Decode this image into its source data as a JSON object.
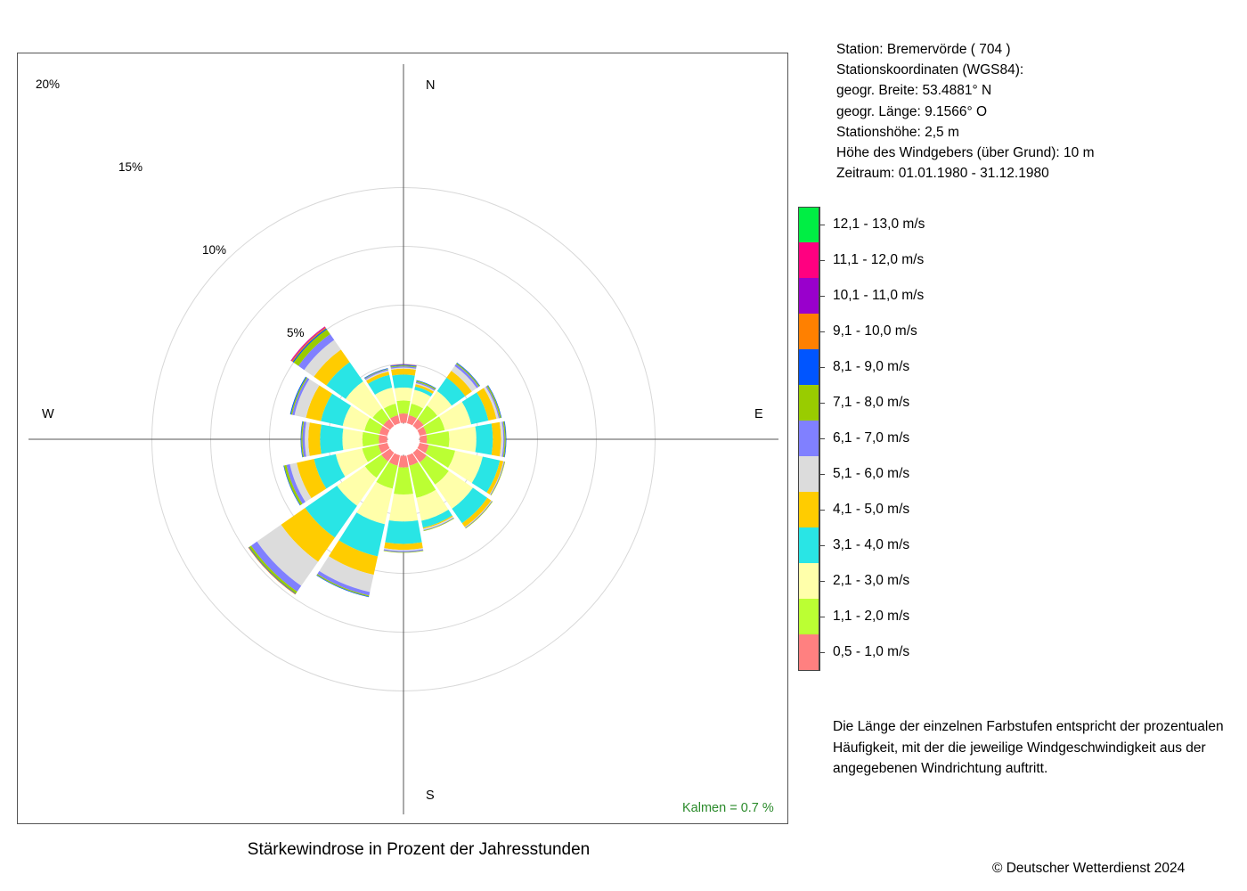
{
  "station": {
    "line1": "Station:  Bremervörde  ( 704 )",
    "line2": "Stationskoordinaten (WGS84):",
    "line3": "geogr. Breite: 53.4881° N",
    "line4": "geogr. Länge:   9.1566° O",
    "line5": "Stationshöhe: 2,5 m",
    "line6": "Höhe des Windgebers (über Grund): 10 m",
    "line7": "Zeitraum: 01.01.1980 - 31.12.1980"
  },
  "note": "Die Länge der einzelnen Farbstufen entspricht der prozentualen Häufigkeit, mit der die jeweilige Windgeschwindigkeit aus der angegebenen Windrichtung auftritt.",
  "caption": "Stärkewindrose in Prozent der Jahresstunden",
  "copyright": "© Deutscher Wetterdienst  2024",
  "chart_data": {
    "type": "wind-rose",
    "title": "Stärkewindrose in Prozent der Jahresstunden",
    "directions": [
      "N",
      "NNO",
      "NO",
      "ONO",
      "O",
      "OSO",
      "SO",
      "SSO",
      "S",
      "SSW",
      "SW",
      "WSW",
      "W",
      "WNW",
      "NW",
      "NNW"
    ],
    "compass_labels": [
      "N",
      "E",
      "S",
      "W"
    ],
    "radial_ticks": [
      "5%",
      "10%",
      "15%",
      "20%"
    ],
    "radial_values": [
      5,
      10,
      15,
      20
    ],
    "calm": "Kalmen  =  0.7 %",
    "inner_hole_pct": 1.4,
    "speed_classes": [
      {
        "label": "0,5 - 1,0 m/s",
        "color": "#ff8080"
      },
      {
        "label": "1,1 - 2,0 m/s",
        "color": "#bbff33"
      },
      {
        "label": "2,1 - 3,0 m/s",
        "color": "#ffffaa"
      },
      {
        "label": "3,1 - 4,0 m/s",
        "color": "#29e5e5"
      },
      {
        "label": "4,1 - 5,0 m/s",
        "color": "#ffcc00"
      },
      {
        "label": "5,1 - 6,0 m/s",
        "color": "#dcdcdc"
      },
      {
        "label": "6,1 - 7,0 m/s",
        "color": "#8080ff"
      },
      {
        "label": "7,1 - 8,0 m/s",
        "color": "#99cc00"
      },
      {
        "label": "8,1 - 9,0 m/s",
        "color": "#0055ff"
      },
      {
        "label": "9,1 - 10,0 m/s",
        "color": "#ff8000"
      },
      {
        "label": "10,1 - 11,0 m/s",
        "color": "#9900cc"
      },
      {
        "label": "11,1 - 12,0 m/s",
        "color": "#ff0080"
      },
      {
        "label": "12,1 - 13,0 m/s",
        "color": "#00ee44"
      }
    ],
    "series": [
      {
        "dir": "N",
        "values": [
          0.8,
          1.1,
          1.1,
          1.1,
          0.5,
          0.1,
          0.1,
          0.08,
          0.06,
          0.02,
          0.01,
          0.01,
          0
        ]
      },
      {
        "dir": "NNO",
        "values": [
          0.7,
          1.0,
          1.2,
          0.3,
          0.2,
          0.1,
          0.1,
          0.1,
          0.05,
          0,
          0,
          0,
          0
        ]
      },
      {
        "dir": "NO",
        "values": [
          0.7,
          1.4,
          1.5,
          1.4,
          0.7,
          0.5,
          0.2,
          0.1,
          0.05,
          0,
          0,
          0,
          0
        ]
      },
      {
        "dir": "ONO",
        "values": [
          0.6,
          1.6,
          2.3,
          1.5,
          0.7,
          0.2,
          0.1,
          0.1,
          0.05,
          0,
          0,
          0,
          0
        ]
      },
      {
        "dir": "O",
        "values": [
          0.6,
          1.9,
          2.3,
          1.4,
          0.7,
          0.2,
          0.1,
          0.1,
          0.05,
          0,
          0,
          0,
          0
        ]
      },
      {
        "dir": "OSO",
        "values": [
          0.8,
          2.3,
          2.4,
          1.5,
          0.3,
          0.05,
          0.05,
          0.05,
          0,
          0,
          0,
          0,
          0
        ]
      },
      {
        "dir": "SO",
        "values": [
          1.0,
          2.3,
          2.5,
          1.5,
          0.4,
          0.05,
          0.05,
          0.05,
          0,
          0,
          0,
          0,
          0
        ]
      },
      {
        "dir": "SSO",
        "values": [
          0.9,
          2.8,
          2.0,
          0.6,
          0.1,
          0.1,
          0.05,
          0.05,
          0,
          0,
          0,
          0,
          0
        ]
      },
      {
        "dir": "S",
        "values": [
          1.0,
          2.3,
          2.3,
          1.9,
          0.5,
          0.1,
          0.1,
          0.05,
          0,
          0,
          0,
          0,
          0
        ]
      },
      {
        "dir": "SSW",
        "values": [
          0.9,
          2.0,
          3.1,
          2.8,
          1.6,
          1.5,
          0.3,
          0.1,
          0.05,
          0,
          0,
          0,
          0
        ]
      },
      {
        "dir": "SW",
        "values": [
          0.9,
          1.7,
          2.9,
          3.3,
          2.5,
          2.5,
          0.6,
          0.2,
          0.05,
          0.05,
          0,
          0,
          0
        ]
      },
      {
        "dir": "WSW",
        "values": [
          0.8,
          1.4,
          2.3,
          1.9,
          1.5,
          0.6,
          0.3,
          0.2,
          0.05,
          0,
          0,
          0,
          0
        ]
      },
      {
        "dir": "W",
        "values": [
          0.7,
          1.4,
          1.7,
          1.9,
          1.0,
          0.3,
          0.2,
          0.1,
          0.05,
          0,
          0,
          0,
          0
        ]
      },
      {
        "dir": "WNW",
        "values": [
          0.7,
          1.3,
          1.9,
          1.9,
          1.3,
          1.0,
          0.2,
          0.1,
          0.08,
          0,
          0,
          0,
          0
        ]
      },
      {
        "dir": "NW",
        "values": [
          0.7,
          1.1,
          2.8,
          2.0,
          1.3,
          1.0,
          0.6,
          0.5,
          0.1,
          0.1,
          0.05,
          0.05,
          0
        ]
      },
      {
        "dir": "NNW",
        "values": [
          0.7,
          1.0,
          1.4,
          1.1,
          0.3,
          0.1,
          0.1,
          0.05,
          0.05,
          0,
          0,
          0,
          0
        ]
      }
    ]
  }
}
